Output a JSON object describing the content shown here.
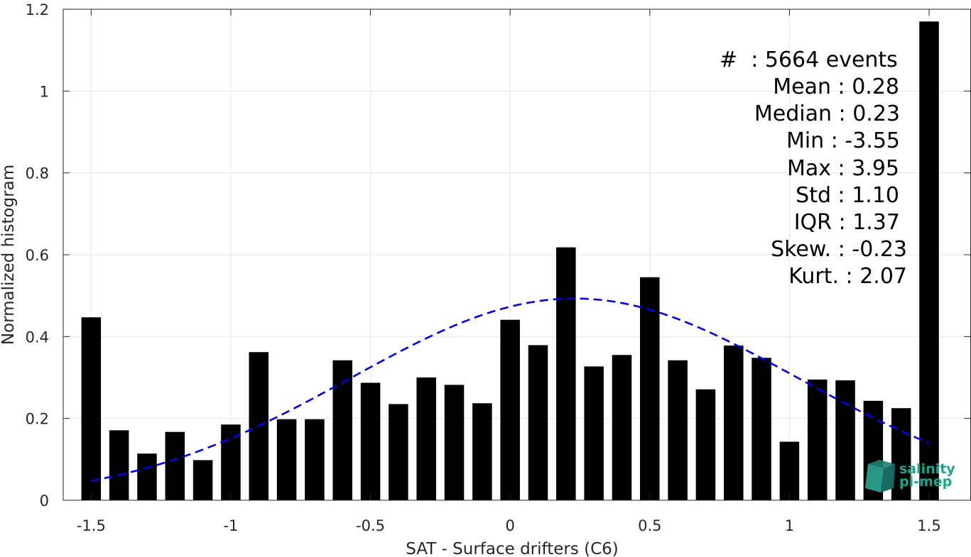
{
  "chart_data": {
    "type": "bar",
    "xlabel": "SAT - Surface drifters (C6)",
    "ylabel": "Normalized histogram",
    "xlim": [
      -1.6,
      1.65
    ],
    "ylim": [
      0,
      1.2
    ],
    "xticks": [
      -1.5,
      -1,
      -0.5,
      0,
      0.5,
      1,
      1.5
    ],
    "xtick_labels": [
      "-1.5",
      "-1",
      "-0.5",
      "0",
      "0.5",
      "1",
      "1.5"
    ],
    "yticks": [
      0,
      0.2,
      0.4,
      0.6,
      0.8,
      1,
      1.2
    ],
    "ytick_labels": [
      "0",
      "0.2",
      "0.4",
      "0.6",
      "0.8",
      "1",
      "1.2"
    ],
    "grid": true,
    "bar_color": "#000000",
    "bar_width": 0.07,
    "bars": [
      {
        "x": -1.5,
        "y": 0.447
      },
      {
        "x": -1.4,
        "y": 0.171
      },
      {
        "x": -1.3,
        "y": 0.114
      },
      {
        "x": -1.2,
        "y": 0.167
      },
      {
        "x": -1.1,
        "y": 0.098
      },
      {
        "x": -1.0,
        "y": 0.185
      },
      {
        "x": -0.9,
        "y": 0.362
      },
      {
        "x": -0.8,
        "y": 0.198
      },
      {
        "x": -0.7,
        "y": 0.198
      },
      {
        "x": -0.6,
        "y": 0.342
      },
      {
        "x": -0.5,
        "y": 0.287
      },
      {
        "x": -0.4,
        "y": 0.235
      },
      {
        "x": -0.3,
        "y": 0.3
      },
      {
        "x": -0.2,
        "y": 0.282
      },
      {
        "x": -0.1,
        "y": 0.237
      },
      {
        "x": 0.0,
        "y": 0.441
      },
      {
        "x": 0.1,
        "y": 0.379
      },
      {
        "x": 0.2,
        "y": 0.618
      },
      {
        "x": 0.3,
        "y": 0.327
      },
      {
        "x": 0.4,
        "y": 0.355
      },
      {
        "x": 0.5,
        "y": 0.545
      },
      {
        "x": 0.6,
        "y": 0.342
      },
      {
        "x": 0.7,
        "y": 0.271
      },
      {
        "x": 0.8,
        "y": 0.378
      },
      {
        "x": 0.9,
        "y": 0.348
      },
      {
        "x": 1.0,
        "y": 0.143
      },
      {
        "x": 1.1,
        "y": 0.295
      },
      {
        "x": 1.2,
        "y": 0.293
      },
      {
        "x": 1.3,
        "y": 0.243
      },
      {
        "x": 1.4,
        "y": 0.225
      },
      {
        "x": 1.5,
        "y": 1.17
      }
    ],
    "fit_curve": {
      "type": "gaussian",
      "style": "dashed",
      "color": "#0000ee",
      "x_range": [
        -1.5,
        1.5
      ],
      "peak_x": 0.23,
      "peak_y": 0.493,
      "sigma": 0.8
    },
    "stats": {
      "count_label": "#  : 5664 events",
      "mean_label": "Mean : 0.28",
      "median_label": "Median : 0.23",
      "min_label": "Min : -3.55",
      "max_label": "Max : 3.95",
      "std_label": "Std : 1.10",
      "iqr_label": "IQR : 1.37",
      "skew_label": "Skew. : -0.23",
      "kurt_label": "Kurt. : 2.07"
    }
  },
  "logo": {
    "line1": "salinity",
    "line2": "pi-mep",
    "icon": "salinity-cube-icon",
    "color": "#1aa68a"
  }
}
